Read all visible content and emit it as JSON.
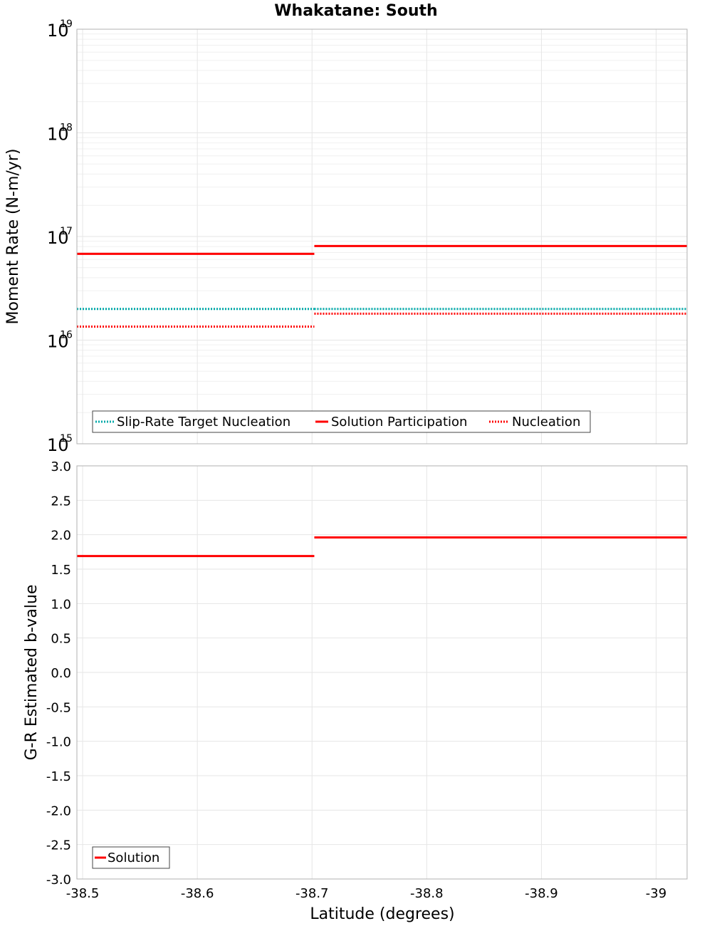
{
  "chart_data": [
    {
      "type": "line",
      "title": "Whakatane: South",
      "xlabel": "",
      "ylabel": "Moment Rate (N-m/yr)",
      "yscale": "log",
      "ylim": [
        1000000000000000.0,
        1e+19
      ],
      "xlim": [
        -38.495,
        -39.027
      ],
      "ytick_exponents": [
        "15",
        "16",
        "17",
        "18",
        "19"
      ],
      "ytick_base": "10",
      "grid": true,
      "legend_position": "bottom-left",
      "series": [
        {
          "name": "Slip-Rate Target Nucleation",
          "style": "dotted",
          "color": "#00aaaa",
          "segments": [
            {
              "x": [
                -38.495,
                -38.702
              ],
              "y": 2e+16
            },
            {
              "x": [
                -38.702,
                -39.027
              ],
              "y": 2e+16
            }
          ]
        },
        {
          "name": "Solution Participation",
          "style": "solid",
          "color": "#ff0000",
          "segments": [
            {
              "x": [
                -38.495,
                -38.702
              ],
              "y": 6.8e+16
            },
            {
              "x": [
                -38.702,
                -39.027
              ],
              "y": 8.1e+16
            }
          ]
        },
        {
          "name": "Nucleation",
          "style": "dotted",
          "color": "#ff0000",
          "segments": [
            {
              "x": [
                -38.495,
                -38.702
              ],
              "y": 1.35e+16
            },
            {
              "x": [
                -38.702,
                -39.027
              ],
              "y": 1.8e+16
            }
          ]
        }
      ]
    },
    {
      "type": "line",
      "title": "",
      "xlabel": "Latitude (degrees)",
      "ylabel": "G-R Estimated b-value",
      "ylim": [
        -3.0,
        3.0
      ],
      "xlim": [
        -38.495,
        -39.027
      ],
      "yticks": [
        "3.0",
        "2.5",
        "2.0",
        "1.5",
        "1.0",
        "0.5",
        "0.0",
        "-0.5",
        "-1.0",
        "-1.5",
        "-2.0",
        "-2.5",
        "-3.0"
      ],
      "xticks": [
        {
          "value": -38.5,
          "label": "-38.5"
        },
        {
          "value": -38.6,
          "label": "-38.6"
        },
        {
          "value": -38.7,
          "label": "-38.7"
        },
        {
          "value": -38.8,
          "label": "-38.8"
        },
        {
          "value": -38.9,
          "label": "-38.9"
        },
        {
          "value": -39.0,
          "label": "-39"
        }
      ],
      "grid": true,
      "legend_position": "bottom-left",
      "series": [
        {
          "name": "Solution",
          "style": "solid",
          "color": "#ff0000",
          "segments": [
            {
              "x": [
                -38.495,
                -38.702
              ],
              "y": 1.69
            },
            {
              "x": [
                -38.702,
                -39.027
              ],
              "y": 1.96
            }
          ]
        }
      ]
    }
  ]
}
